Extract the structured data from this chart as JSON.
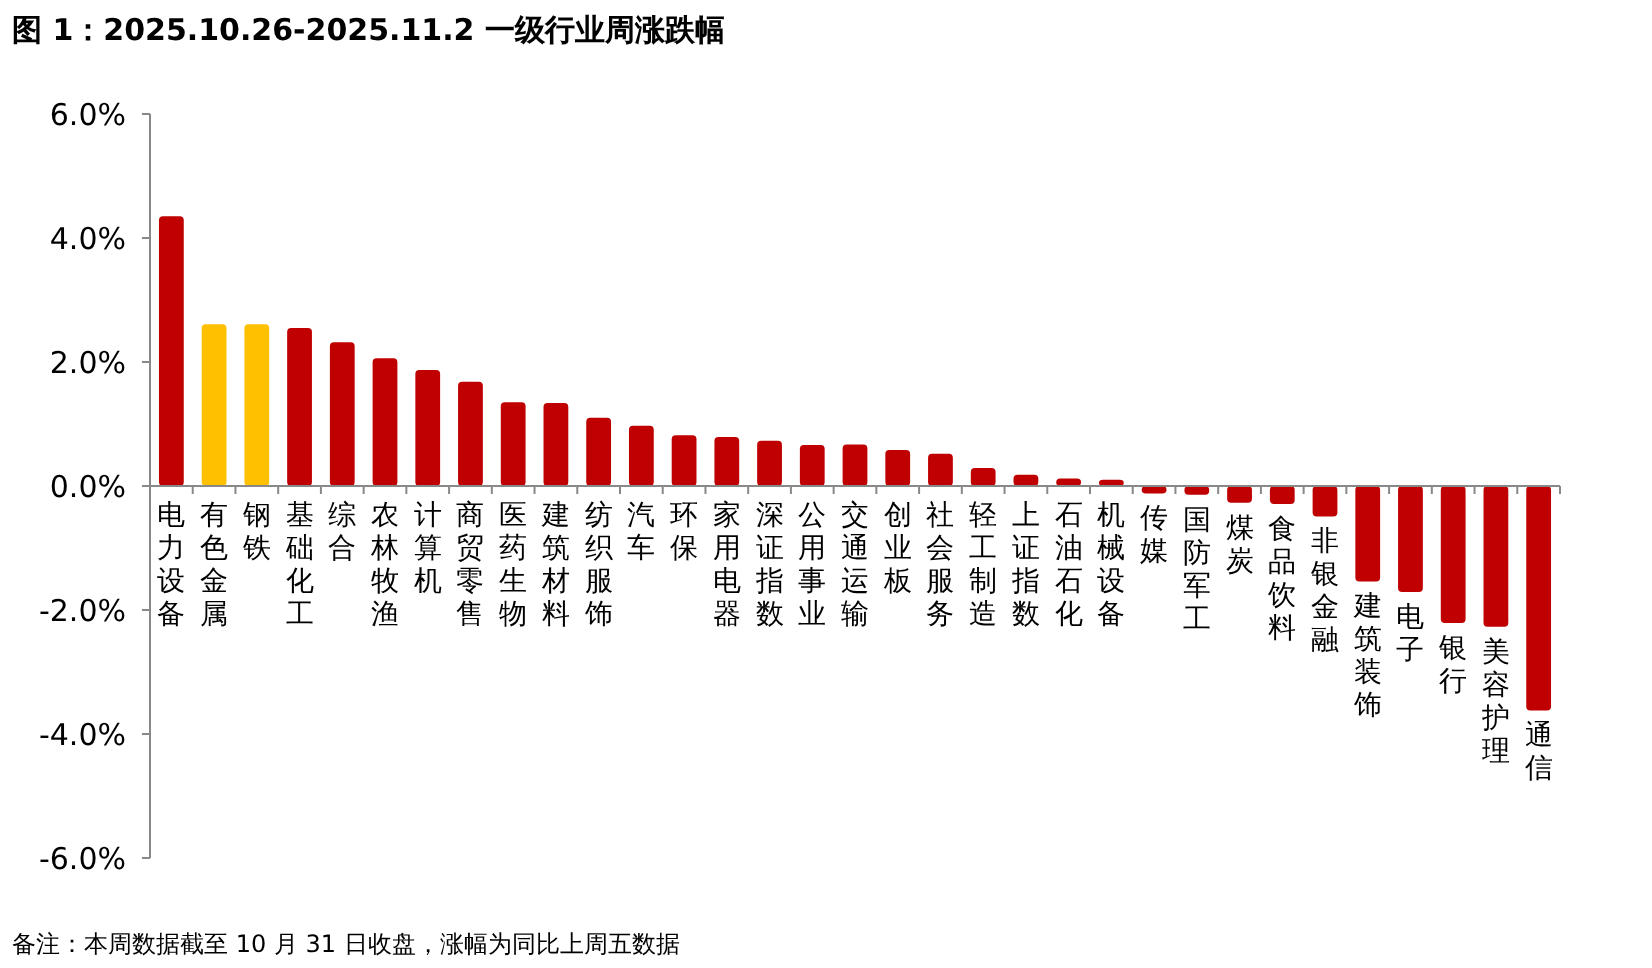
{
  "chart_data": {
    "type": "bar",
    "title": "图 1：2025.10.26-2025.11.2 一级行业周涨跌幅",
    "categories": [
      "电力设备",
      "有色金属",
      "钢铁",
      "基础化工",
      "综合",
      "农林牧渔",
      "计算机",
      "商贸零售",
      "医药生物",
      "建筑材料",
      "纺织服饰",
      "汽车",
      "环保",
      "家用电器",
      "深证指数",
      "公用事业",
      "交通运输",
      "创业板",
      "社会服务",
      "轻工制造",
      "上证指数",
      "石油石化",
      "机械设备",
      "传媒",
      "国防军工",
      "煤炭",
      "食品饮料",
      "非银金融",
      "建筑装饰",
      "电子",
      "银行",
      "美容护理",
      "通信"
    ],
    "values": [
      4.35,
      2.61,
      2.61,
      2.55,
      2.32,
      2.06,
      1.87,
      1.68,
      1.35,
      1.34,
      1.1,
      0.97,
      0.82,
      0.79,
      0.73,
      0.66,
      0.67,
      0.58,
      0.52,
      0.29,
      0.18,
      0.12,
      0.1,
      -0.12,
      -0.14,
      -0.27,
      -0.29,
      -0.49,
      -1.54,
      -1.71,
      -2.21,
      -2.27,
      -3.62
    ],
    "colors": [
      "#c00000",
      "#ffc000",
      "#ffc000",
      "#c00000",
      "#c00000",
      "#c00000",
      "#c00000",
      "#c00000",
      "#c00000",
      "#c00000",
      "#c00000",
      "#c00000",
      "#c00000",
      "#c00000",
      "#c00000",
      "#c00000",
      "#c00000",
      "#c00000",
      "#c00000",
      "#c00000",
      "#c00000",
      "#c00000",
      "#c00000",
      "#c00000",
      "#c00000",
      "#c00000",
      "#c00000",
      "#c00000",
      "#c00000",
      "#c00000",
      "#c00000",
      "#c00000",
      "#c00000"
    ],
    "ylim": [
      -6,
      6
    ],
    "yticks": [
      {
        "value": -6,
        "label": "-6.0%"
      },
      {
        "value": -4,
        "label": "-4.0%"
      },
      {
        "value": -2,
        "label": "-2.0%"
      },
      {
        "value": 0,
        "label": "0.0%"
      },
      {
        "value": 2,
        "label": "2.0%"
      },
      {
        "value": 4,
        "label": "4.0%"
      },
      {
        "value": 6,
        "label": "6.0%"
      }
    ],
    "grid": false,
    "annotations": [
      "备注：本周数据截至 10 月 31 日收盘，涨幅为同比上周五数据"
    ]
  }
}
